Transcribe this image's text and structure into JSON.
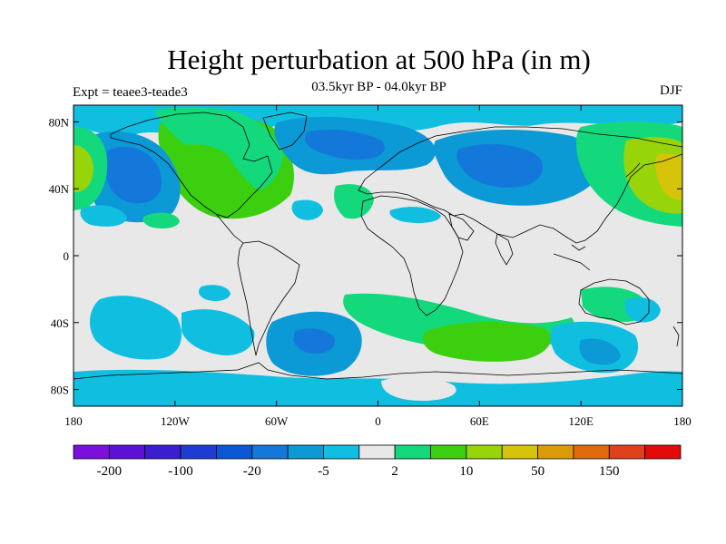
{
  "title": "Height perturbation at 500 hPa (in m)",
  "subtitle": "03.5kyr BP - 04.0kyr BP",
  "left_string": "Expt = teaee3-teade3",
  "right_string": "DJF",
  "map": {
    "projection": "cylindrical equidistant",
    "lon_range": [
      -180,
      180
    ],
    "lat_range": [
      -90,
      90
    ],
    "lat_ticks": [
      "80N",
      "40N",
      "0",
      "40S",
      "80S"
    ],
    "lat_tick_values": [
      80,
      40,
      0,
      -40,
      -80
    ],
    "lon_ticks": [
      "180",
      "120W",
      "60W",
      "0",
      "60E",
      "120E",
      "180"
    ],
    "lon_tick_values": [
      -180,
      -120,
      -60,
      0,
      60,
      120,
      180
    ],
    "background_color": "#e8e8e8"
  },
  "colorbar": {
    "labels": [
      "-200",
      "-100",
      "-20",
      "-5",
      "2",
      "10",
      "50",
      "150"
    ],
    "colors": [
      "#7b0fdc",
      "#5b12d6",
      "#3a1ed0",
      "#1e3cd4",
      "#0b57d6",
      "#1478da",
      "#0b9ad6",
      "#10bfe0",
      "#e8e8e8",
      "#13d97c",
      "#3ccf10",
      "#98d40a",
      "#d6c40a",
      "#dc9c0a",
      "#e06a0c",
      "#e0401c",
      "#e40a0a"
    ],
    "label_positions": [
      1,
      3,
      5,
      7,
      9,
      11,
      13,
      15
    ]
  },
  "chart_data": {
    "type": "heatmap",
    "title": "Height perturbation at 500 hPa (in m)",
    "subtitle": "03.5kyr BP - 04.0kyr BP",
    "units": "m",
    "season": "DJF",
    "experiment": "Expt = teaee3-teade3",
    "xlim": [
      -180,
      180
    ],
    "ylim": [
      -90,
      90
    ],
    "features": [
      {
        "region": "North Pacific / Alaska",
        "lon": -135,
        "lat": 45,
        "value_level": "-20 to -5"
      },
      {
        "region": "North Atlantic",
        "lon": -35,
        "lat": 62,
        "value_level": "-20 to -5"
      },
      {
        "region": "Siberia",
        "lon": 70,
        "lat": 55,
        "value_level": "-20 to -5"
      },
      {
        "region": "North America",
        "lon": -95,
        "lat": 55,
        "value_level": "2 to 10"
      },
      {
        "region": "NW Pacific",
        "lon": 165,
        "lat": 45,
        "value_level": "10 to 50"
      },
      {
        "region": "South Atlantic",
        "lon": -35,
        "lat": -50,
        "value_level": "-20 to -5"
      },
      {
        "region": "Southern Indian Ocean",
        "lon": 70,
        "lat": -50,
        "value_level": "2 to 10"
      },
      {
        "region": "South Pacific",
        "lon": -150,
        "lat": -45,
        "value_level": "-5 to -2"
      }
    ]
  }
}
